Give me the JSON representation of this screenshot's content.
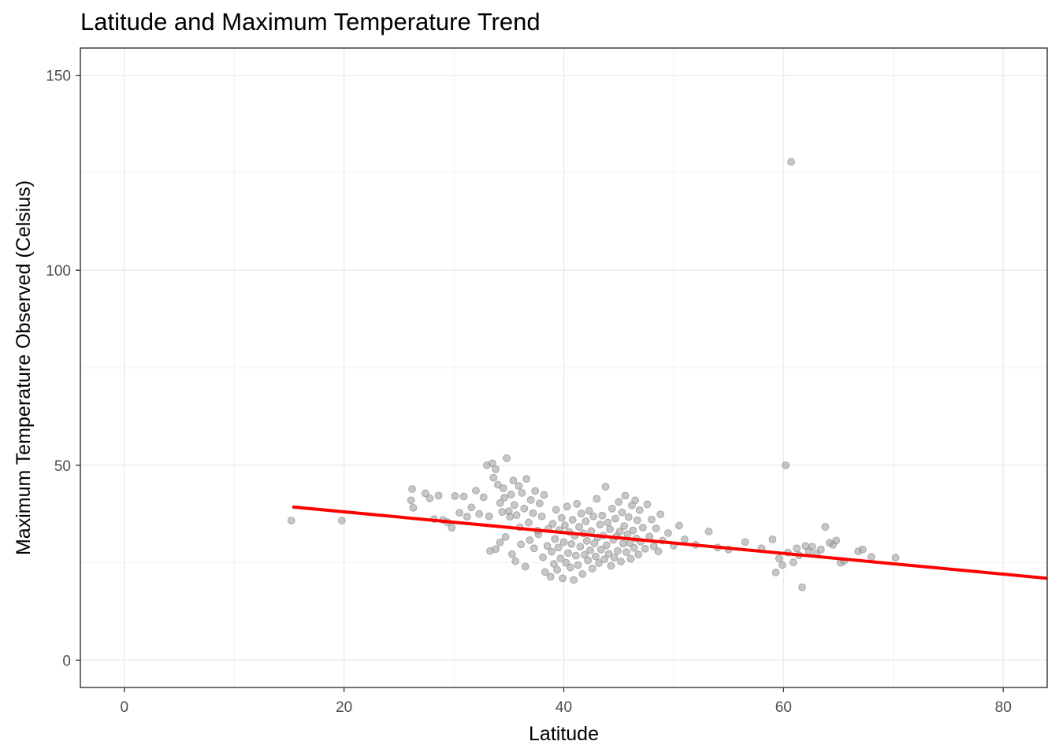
{
  "chart_data": {
    "type": "scatter",
    "title": "Latitude and Maximum Temperature Trend",
    "xlabel": "Latitude",
    "ylabel": "Maximum Temperature Observed (Celsius)",
    "xlim": [
      -4,
      84
    ],
    "ylim": [
      -7,
      157
    ],
    "xticks": [
      0,
      20,
      40,
      60,
      80
    ],
    "yticks": [
      0,
      50,
      100,
      150
    ],
    "grid": true,
    "point_color": "#999999",
    "trend_color": "#ff0000",
    "trend_line": {
      "x": [
        15.3,
        84
      ],
      "y": [
        39.3,
        21.0
      ]
    },
    "points": [
      [
        15.2,
        35.8
      ],
      [
        19.8,
        35.8
      ],
      [
        26.2,
        43.9
      ],
      [
        26.1,
        41.0
      ],
      [
        26.3,
        39.1
      ],
      [
        27.4,
        42.8
      ],
      [
        27.8,
        41.5
      ],
      [
        28.2,
        36.2
      ],
      [
        28.6,
        42.2
      ],
      [
        29.0,
        36.0
      ],
      [
        29.4,
        35.4
      ],
      [
        29.8,
        34.0
      ],
      [
        30.1,
        42.1
      ],
      [
        30.5,
        37.8
      ],
      [
        30.9,
        42.0
      ],
      [
        31.2,
        36.8
      ],
      [
        31.6,
        39.2
      ],
      [
        32.0,
        43.5
      ],
      [
        32.3,
        37.5
      ],
      [
        32.7,
        41.8
      ],
      [
        33.0,
        50.0
      ],
      [
        33.2,
        36.9
      ],
      [
        33.5,
        50.5
      ],
      [
        33.6,
        46.8
      ],
      [
        33.8,
        49.0
      ],
      [
        34.0,
        45.0
      ],
      [
        34.2,
        40.3
      ],
      [
        34.4,
        38.0
      ],
      [
        34.5,
        44.1
      ],
      [
        34.6,
        41.7
      ],
      [
        34.8,
        51.8
      ],
      [
        35.0,
        38.2
      ],
      [
        35.1,
        36.8
      ],
      [
        35.2,
        42.5
      ],
      [
        35.4,
        46.1
      ],
      [
        35.5,
        39.8
      ],
      [
        35.7,
        37.2
      ],
      [
        35.9,
        44.7
      ],
      [
        36.0,
        34.1
      ],
      [
        36.2,
        42.9
      ],
      [
        36.4,
        38.9
      ],
      [
        36.6,
        46.5
      ],
      [
        36.8,
        35.3
      ],
      [
        37.0,
        41.1
      ],
      [
        37.2,
        37.7
      ],
      [
        37.4,
        43.4
      ],
      [
        37.6,
        33.2
      ],
      [
        37.8,
        40.2
      ],
      [
        38.0,
        36.9
      ],
      [
        38.2,
        42.4
      ],
      [
        33.3,
        28.0
      ],
      [
        33.8,
        28.5
      ],
      [
        34.2,
        30.2
      ],
      [
        34.7,
        31.6
      ],
      [
        35.3,
        27.2
      ],
      [
        35.6,
        25.4
      ],
      [
        36.1,
        29.7
      ],
      [
        36.5,
        24.0
      ],
      [
        36.9,
        30.8
      ],
      [
        37.3,
        28.7
      ],
      [
        37.7,
        32.3
      ],
      [
        38.1,
        26.4
      ],
      [
        38.3,
        22.6
      ],
      [
        38.5,
        29.3
      ],
      [
        38.6,
        33.7
      ],
      [
        38.8,
        21.4
      ],
      [
        38.9,
        27.8
      ],
      [
        39.0,
        35.0
      ],
      [
        39.1,
        24.7
      ],
      [
        39.2,
        31.1
      ],
      [
        39.3,
        38.6
      ],
      [
        39.4,
        23.2
      ],
      [
        39.5,
        28.9
      ],
      [
        39.6,
        33.4
      ],
      [
        39.7,
        26.1
      ],
      [
        39.8,
        36.5
      ],
      [
        39.9,
        21.0
      ],
      [
        40.0,
        30.3
      ],
      [
        40.1,
        34.6
      ],
      [
        40.2,
        25.0
      ],
      [
        40.3,
        39.4
      ],
      [
        40.4,
        27.5
      ],
      [
        40.5,
        32.9
      ],
      [
        40.6,
        23.8
      ],
      [
        40.7,
        29.8
      ],
      [
        40.8,
        36.0
      ],
      [
        40.9,
        20.6
      ],
      [
        41.0,
        31.9
      ],
      [
        41.1,
        26.8
      ],
      [
        41.2,
        40.1
      ],
      [
        41.3,
        24.4
      ],
      [
        41.4,
        34.2
      ],
      [
        41.5,
        29.1
      ],
      [
        41.6,
        37.6
      ],
      [
        41.7,
        22.1
      ],
      [
        41.8,
        32.5
      ],
      [
        41.9,
        27.0
      ],
      [
        42.0,
        35.6
      ],
      [
        42.1,
        30.6
      ],
      [
        42.2,
        25.6
      ],
      [
        42.3,
        38.3
      ],
      [
        42.4,
        28.2
      ],
      [
        42.5,
        33.1
      ],
      [
        42.6,
        23.5
      ],
      [
        42.7,
        36.9
      ],
      [
        42.8,
        30.0
      ],
      [
        42.9,
        26.6
      ],
      [
        43.0,
        41.4
      ],
      [
        43.1,
        31.5
      ],
      [
        43.2,
        24.9
      ],
      [
        43.3,
        34.8
      ],
      [
        43.4,
        28.4
      ],
      [
        43.5,
        37.1
      ],
      [
        43.6,
        32.0
      ],
      [
        43.7,
        25.9
      ],
      [
        43.8,
        44.5
      ],
      [
        43.9,
        29.5
      ],
      [
        44.0,
        35.3
      ],
      [
        44.1,
        27.3
      ],
      [
        44.2,
        33.6
      ],
      [
        44.3,
        24.2
      ],
      [
        44.4,
        38.9
      ],
      [
        44.5,
        30.9
      ],
      [
        44.6,
        26.3
      ],
      [
        44.7,
        36.3
      ],
      [
        44.8,
        31.8
      ],
      [
        44.9,
        28.0
      ],
      [
        45.0,
        40.6
      ],
      [
        45.1,
        33.0
      ],
      [
        45.2,
        25.3
      ],
      [
        45.3,
        37.9
      ],
      [
        45.4,
        29.9
      ],
      [
        45.5,
        34.4
      ],
      [
        45.6,
        42.2
      ],
      [
        45.7,
        27.7
      ],
      [
        45.8,
        32.3
      ],
      [
        45.9,
        36.7
      ],
      [
        46.0,
        30.1
      ],
      [
        46.1,
        26.0
      ],
      [
        46.2,
        39.7
      ],
      [
        46.3,
        33.3
      ],
      [
        46.4,
        28.8
      ],
      [
        46.5,
        41.0
      ],
      [
        46.6,
        31.2
      ],
      [
        46.7,
        35.9
      ],
      [
        46.8,
        27.1
      ],
      [
        46.9,
        38.5
      ],
      [
        47.0,
        30.4
      ],
      [
        47.2,
        34.0
      ],
      [
        47.4,
        28.6
      ],
      [
        47.6,
        40.0
      ],
      [
        47.8,
        31.7
      ],
      [
        48.0,
        36.1
      ],
      [
        48.2,
        29.2
      ],
      [
        48.4,
        33.8
      ],
      [
        48.6,
        27.9
      ],
      [
        48.8,
        37.4
      ],
      [
        49.0,
        30.7
      ],
      [
        49.5,
        32.6
      ],
      [
        50.0,
        29.4
      ],
      [
        50.5,
        34.5
      ],
      [
        51.0,
        31.0
      ],
      [
        52.0,
        29.6
      ],
      [
        53.2,
        33.0
      ],
      [
        54.0,
        28.9
      ],
      [
        55.0,
        28.4
      ],
      [
        56.5,
        30.3
      ],
      [
        58.0,
        28.7
      ],
      [
        59.0,
        31.0
      ],
      [
        59.3,
        22.5
      ],
      [
        59.6,
        26.1
      ],
      [
        59.9,
        24.4
      ],
      [
        60.2,
        50.0
      ],
      [
        60.4,
        27.6
      ],
      [
        60.7,
        127.8
      ],
      [
        60.9,
        25.1
      ],
      [
        61.2,
        28.7
      ],
      [
        61.4,
        26.9
      ],
      [
        61.7,
        18.7
      ],
      [
        62.0,
        29.3
      ],
      [
        62.3,
        28.0
      ],
      [
        62.6,
        29.1
      ],
      [
        63.0,
        27.3
      ],
      [
        63.4,
        28.4
      ],
      [
        63.8,
        34.2
      ],
      [
        64.2,
        30.1
      ],
      [
        64.5,
        29.6
      ],
      [
        64.8,
        30.7
      ],
      [
        65.2,
        25.0
      ],
      [
        65.5,
        25.4
      ],
      [
        66.8,
        27.9
      ],
      [
        67.2,
        28.4
      ],
      [
        68.0,
        26.5
      ],
      [
        70.2,
        26.3
      ]
    ]
  }
}
